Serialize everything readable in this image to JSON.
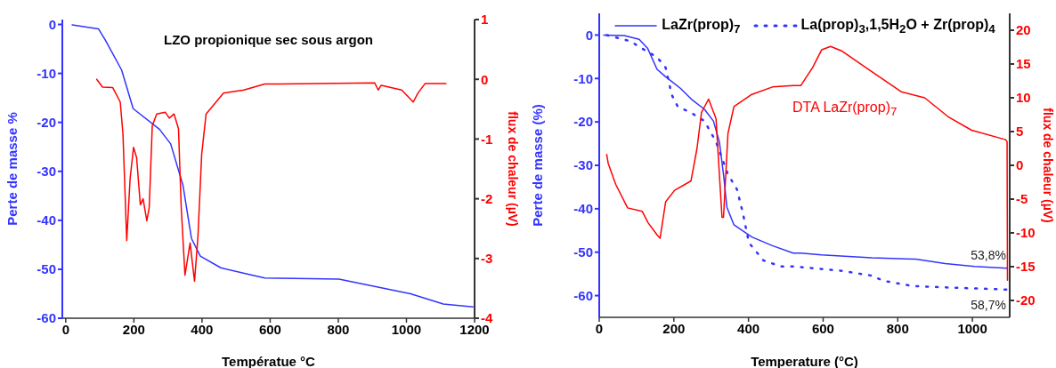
{
  "chart_data": [
    {
      "type": "line",
      "title": "LZO propionique sec sous argon",
      "xlabel": "Températue  °C",
      "ylabel": "Perte de masse %",
      "y2label": "flux de chaleur (µV)",
      "xlim": [
        -10,
        1200
      ],
      "xticks": [
        0,
        200,
        400,
        600,
        800,
        1000,
        1200
      ],
      "ylim": [
        -60,
        1
      ],
      "yticks": [
        0,
        -10,
        -20,
        -30,
        -40,
        -50,
        -60
      ],
      "y2lim": [
        -4,
        1
      ],
      "y2ticks": [
        1,
        0,
        -1,
        -2,
        -3,
        -4
      ],
      "grid": false,
      "legend": false,
      "marker": "none",
      "series": [
        {
          "color": "#3333ff",
          "x": [
            19,
            96,
            117,
            164,
            198,
            275,
            308,
            344,
            369,
            395,
            455,
            541,
            584,
            802,
            1012,
            1108,
            1195
          ],
          "values": [
            -0.1,
            -0.9,
            -3.3,
            -9.3,
            -17.2,
            -21.4,
            -24.4,
            -32.8,
            -43.7,
            -47.3,
            -49.7,
            -51.1,
            -51.8,
            -52.0,
            -55.0,
            -57.1,
            -57.7
          ]
        },
        {
          "color": "#ff0000",
          "axis": "y2",
          "x": [
            91,
            108,
            138,
            160,
            168,
            179,
            189,
            199,
            208,
            219,
            227,
            238,
            245,
            254,
            267,
            292,
            304,
            318,
            331,
            339,
            350,
            365,
            378,
            388,
            399,
            412,
            463,
            523,
            584,
            628,
            907,
            917,
            926,
            986,
            1020,
            1034,
            1055,
            1116
          ],
          "values": [
            0.0,
            -0.13,
            -0.14,
            -0.38,
            -0.92,
            -2.7,
            -1.66,
            -1.14,
            -1.31,
            -2.1,
            -2.0,
            -2.37,
            -2.15,
            -0.78,
            -0.58,
            -0.55,
            -0.65,
            -0.58,
            -0.83,
            -2.15,
            -3.28,
            -2.74,
            -3.38,
            -2.64,
            -1.26,
            -0.58,
            -0.23,
            -0.18,
            -0.08,
            -0.08,
            -0.06,
            -0.18,
            -0.1,
            -0.18,
            -0.38,
            -0.23,
            -0.07,
            -0.07
          ]
        }
      ]
    },
    {
      "type": "line",
      "xlabel": "Temperature (°C)",
      "ylabel": "Perte de masse (%)",
      "y2label": "flux de chaleur (µV)",
      "xlim": [
        0,
        1100
      ],
      "xticks": [
        0,
        200,
        400,
        600,
        800,
        1000
      ],
      "ylim": [
        -65,
        5
      ],
      "yticks": [
        0,
        -10,
        -20,
        -30,
        -40,
        -50,
        -60
      ],
      "y2lim": [
        -22.5,
        22.5
      ],
      "y2ticks": [
        20,
        15,
        10,
        5,
        0,
        -5,
        -10,
        -15,
        -20
      ],
      "grid": false,
      "legend": "top",
      "marker": "none",
      "annotations": [
        {
          "text": "53,8%",
          "x": 1100,
          "y": -53.7
        },
        {
          "text": "58,7%",
          "x": 1100,
          "y": -58.6
        }
      ],
      "series": [
        {
          "name": "LaZr(prop)$_{7}$",
          "color": "#3333ff",
          "line_style": "solid",
          "x": [
            12,
            67,
            107,
            130,
            155,
            178,
            218,
            250,
            282,
            306,
            322,
            334,
            342,
            361,
            409,
            464,
            520,
            540,
            596,
            730,
            848,
            927,
            1006,
            1093
          ],
          "values": [
            0,
            -0.1,
            -1.0,
            -3.1,
            -7.9,
            -9.6,
            -12.3,
            -15.0,
            -17.1,
            -19.8,
            -24.6,
            -32.8,
            -39.6,
            -43.7,
            -46.5,
            -48.5,
            -50.2,
            -50.2,
            -50.6,
            -51.3,
            -51.6,
            -52.6,
            -53.3,
            -53.7
          ]
        },
        {
          "name": "La(prop)$_{3}$,1,5H$_{2}$O + Zr(prop)$_{4}$",
          "color": "#3333ff",
          "line_style": "dotted",
          "x": [
            20,
            83,
            115,
            155,
            178,
            194,
            210,
            250,
            282,
            313,
            345,
            369,
            385,
            401,
            440,
            488,
            525,
            651,
            730,
            762,
            841,
            927,
            1093
          ],
          "values": [
            0,
            -1.4,
            -3.1,
            -5.1,
            -7.5,
            -13.7,
            -16.4,
            -18.1,
            -19.8,
            -24.6,
            -32.1,
            -35.5,
            -41.0,
            -47.8,
            -51.9,
            -53.3,
            -53.3,
            -54.3,
            -55.4,
            -56.6,
            -57.8,
            -58.1,
            -58.6
          ]
        },
        {
          "name": "DTA LaZr(prop)$_{7}$",
          "color": "#ff0000",
          "line_style": "solid",
          "axis": "y2",
          "x": [
            20,
            24,
            44,
            76,
            115,
            131,
            155,
            163,
            178,
            202,
            246,
            262,
            274,
            293,
            313,
            329,
            333,
            345,
            361,
            409,
            464,
            520,
            540,
            572,
            596,
            620,
            651,
            714,
            809,
            872,
            935,
            998,
            1089,
            1093,
            1094
          ],
          "values": [
            1.6,
            0.3,
            -2.8,
            -6.3,
            -6.8,
            -8.5,
            -10.3,
            -10.8,
            -5.4,
            -3.7,
            -2.3,
            2.5,
            7.8,
            9.8,
            6.9,
            -7.7,
            -7.7,
            4.7,
            8.7,
            10.5,
            11.6,
            11.8,
            11.8,
            14.5,
            17.1,
            17.6,
            16.9,
            14.5,
            10.9,
            10.0,
            7.2,
            5.2,
            3.8,
            3.5,
            -17
          ]
        }
      ]
    }
  ]
}
